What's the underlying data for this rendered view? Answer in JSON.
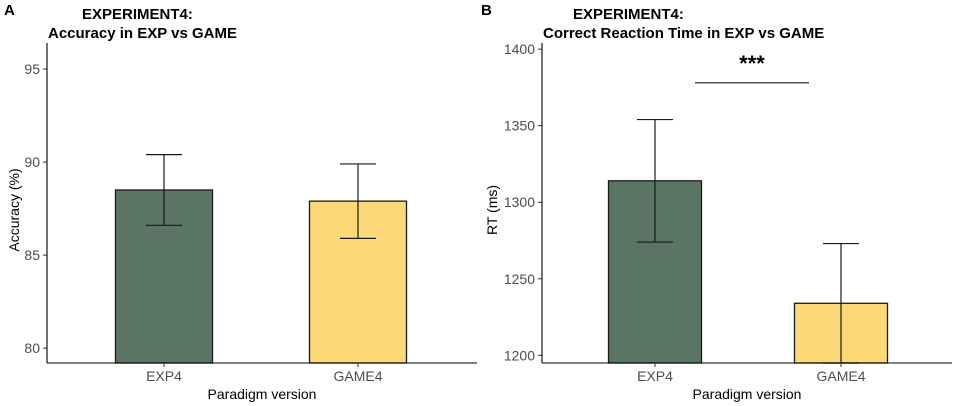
{
  "chart_data": [
    {
      "panel": "A",
      "type": "bar",
      "title_lines": [
        "EXPERIMENT4:",
        "Accuracy in EXP vs GAME"
      ],
      "xlabel": "Paradigm version",
      "ylabel": "Accuracy (%)",
      "categories": [
        "EXP4",
        "GAME4"
      ],
      "values": [
        88.5,
        87.9
      ],
      "error_low": [
        86.6,
        85.9
      ],
      "error_high": [
        90.4,
        89.9
      ],
      "colors": [
        "#5b7565",
        "#fdd878"
      ],
      "ylim": [
        79.2,
        96.4
      ],
      "yticks": [
        80,
        85,
        90,
        95
      ],
      "significance": null,
      "grid": false
    },
    {
      "panel": "B",
      "type": "bar",
      "title_lines": [
        "EXPERIMENT4:",
        "Correct Reaction Time in EXP vs GAME"
      ],
      "xlabel": "Paradigm version",
      "ylabel": "RT (ms)",
      "categories": [
        "EXP4",
        "GAME4"
      ],
      "values": [
        1314,
        1234
      ],
      "error_low": [
        1274,
        1195
      ],
      "error_high": [
        1354,
        1273
      ],
      "colors": [
        "#5b7565",
        "#fdd878"
      ],
      "ylim": [
        1195,
        1404
      ],
      "yticks": [
        1200,
        1250,
        1300,
        1350,
        1400
      ],
      "significance": {
        "label": "***",
        "from": "EXP4",
        "to": "GAME4",
        "value": 1378
      },
      "grid": false
    }
  ]
}
